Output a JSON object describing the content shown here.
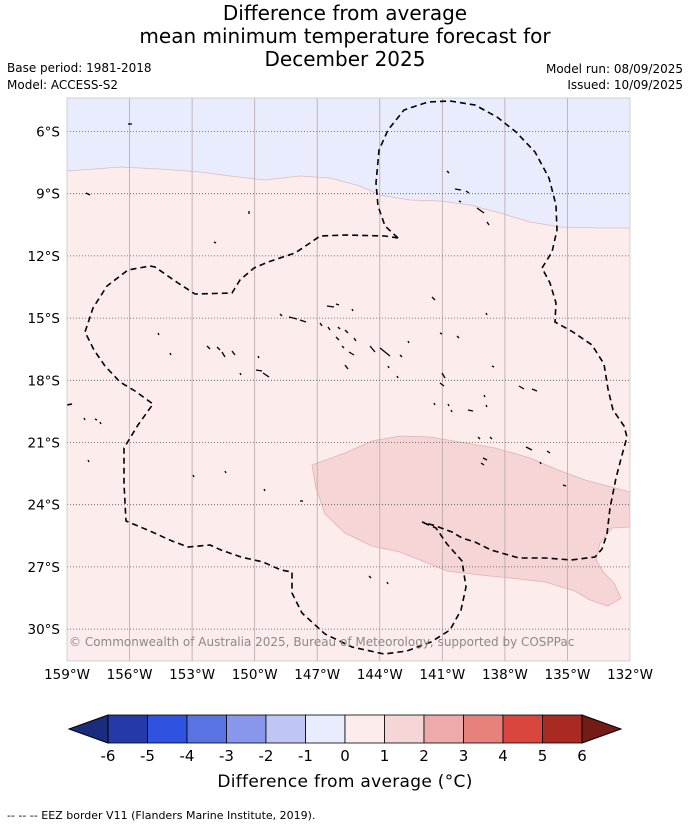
{
  "title": {
    "line1": "Difference from average",
    "line2": "mean minimum temperature forecast for",
    "line3": "December 2025"
  },
  "meta": {
    "base_period": "Base period: 1981-2018",
    "model": "Model: ACCESS-S2",
    "model_run": "Model run: 08/09/2025",
    "issued": "Issued: 10/09/2025"
  },
  "map": {
    "lat_ticks": [
      "6°S",
      "9°S",
      "12°S",
      "15°S",
      "18°S",
      "21°S",
      "24°S",
      "27°S",
      "30°S"
    ],
    "lon_ticks": [
      "159°W",
      "156°W",
      "153°W",
      "150°W",
      "147°W",
      "144°W",
      "141°W",
      "138°W",
      "135°W",
      "132°W"
    ],
    "copyright": "© Commonwealth of Australia 2025, Bureau of Meteorology, supported by COSPPac",
    "category_colors": {
      "-1_to_0": "#e8ecfc",
      "0_to_1": "#fcecec",
      "1_to_2": "#f5d5d5"
    }
  },
  "colorbar": {
    "ticks": [
      "-6",
      "-5",
      "-4",
      "-3",
      "-2",
      "-1",
      "0",
      "1",
      "2",
      "3",
      "4",
      "5",
      "6"
    ],
    "colors": [
      "#2539a8",
      "#2f52e0",
      "#5a73e3",
      "#8897ec",
      "#c0c6f4",
      "#e8ecfc",
      "#fcecec",
      "#f5d5d5",
      "#eeaaaa",
      "#e6827b",
      "#d9463e",
      "#a82a23"
    ],
    "under_color": "#1c2c7d",
    "over_color": "#741b17",
    "label": "Difference from average (°C)"
  },
  "legend": {
    "eez": "-- -- -- EEZ border V11 (Flanders Marine Institute, 2019)."
  }
}
